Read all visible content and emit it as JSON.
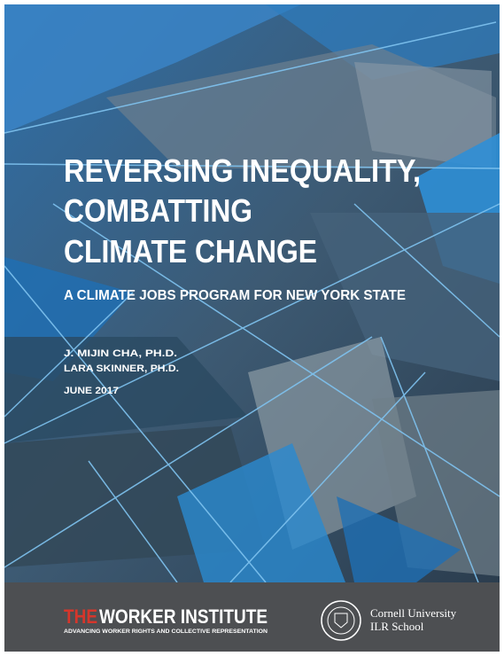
{
  "cover": {
    "title_lines": [
      "REVERSING INEQUALITY,",
      "COMBATTING",
      "CLIMATE CHANGE"
    ],
    "subtitle": "A CLIMATE JOBS PROGRAM FOR NEW YORK STATE",
    "authors": [
      "J. MIJIN CHA, PH.D.",
      "LARA SKINNER, PH.D."
    ],
    "date": "JUNE 2017"
  },
  "footer": {
    "logo_prefix": "THE",
    "logo_name": "WORKER INSTITUTE",
    "tagline": "ADVANCING WORKER RIGHTS AND COLLECTIVE REPRESENTATION",
    "university": "Cornell University",
    "school": "ILR School"
  }
}
